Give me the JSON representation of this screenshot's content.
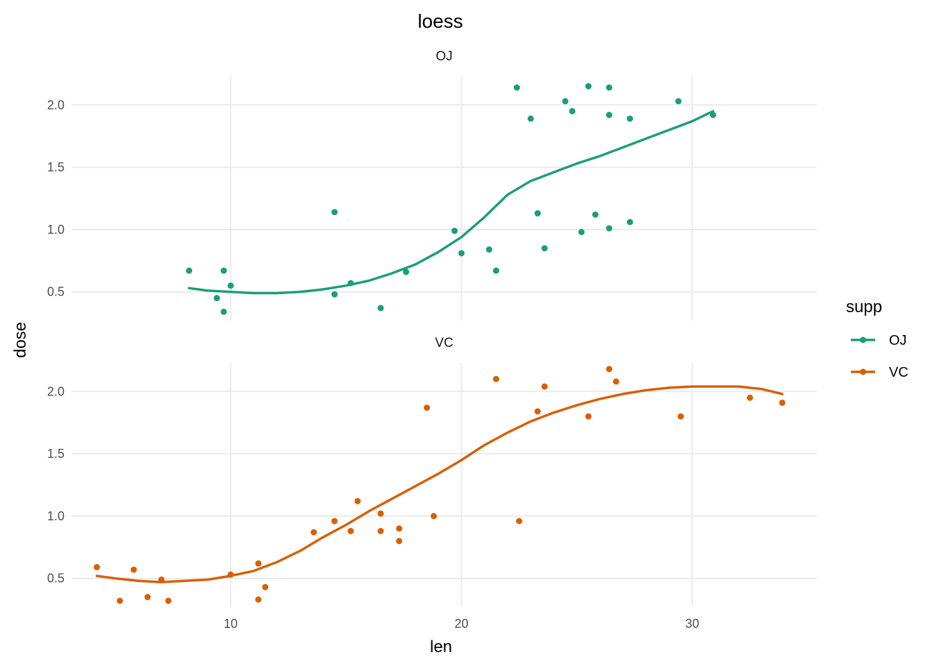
{
  "chart_data": {
    "type": "scatter",
    "title": "loess",
    "xlabel": "len",
    "ylabel": "dose",
    "xlim": [
      3.1,
      35.4
    ],
    "x_ticks": [
      10,
      20,
      30
    ],
    "y_ticks": [
      0.5,
      1.0,
      1.5,
      2.0
    ],
    "y_tick_labels": [
      "0.5",
      "1.0",
      "1.5",
      "2.0"
    ],
    "ylim": [
      0.27,
      2.23
    ],
    "grid": true,
    "legend": {
      "title": "supp",
      "placement": "right",
      "entries": [
        "OJ",
        "VC"
      ]
    },
    "facets": [
      {
        "label": "OJ",
        "color": "#1B9E77",
        "points": [
          {
            "x": 8.2,
            "y": 0.67
          },
          {
            "x": 9.4,
            "y": 0.45
          },
          {
            "x": 9.7,
            "y": 0.67
          },
          {
            "x": 9.7,
            "y": 0.34
          },
          {
            "x": 10.0,
            "y": 0.55
          },
          {
            "x": 14.5,
            "y": 1.14
          },
          {
            "x": 14.5,
            "y": 0.48
          },
          {
            "x": 15.2,
            "y": 0.57
          },
          {
            "x": 16.5,
            "y": 0.37
          },
          {
            "x": 17.6,
            "y": 0.66
          },
          {
            "x": 19.7,
            "y": 0.99
          },
          {
            "x": 20.0,
            "y": 0.81
          },
          {
            "x": 21.2,
            "y": 0.84
          },
          {
            "x": 21.5,
            "y": 0.67
          },
          {
            "x": 22.4,
            "y": 2.14
          },
          {
            "x": 23.0,
            "y": 1.89
          },
          {
            "x": 23.3,
            "y": 1.13
          },
          {
            "x": 23.6,
            "y": 0.85
          },
          {
            "x": 24.5,
            "y": 2.03
          },
          {
            "x": 24.8,
            "y": 1.95
          },
          {
            "x": 25.2,
            "y": 0.98
          },
          {
            "x": 25.5,
            "y": 2.15
          },
          {
            "x": 25.8,
            "y": 1.12
          },
          {
            "x": 26.4,
            "y": 2.14
          },
          {
            "x": 26.4,
            "y": 1.92
          },
          {
            "x": 26.4,
            "y": 1.01
          },
          {
            "x": 27.3,
            "y": 1.89
          },
          {
            "x": 27.3,
            "y": 1.06
          },
          {
            "x": 29.4,
            "y": 2.03
          },
          {
            "x": 30.9,
            "y": 1.92
          }
        ],
        "smooth": [
          {
            "x": 8.2,
            "y": 0.53
          },
          {
            "x": 9.0,
            "y": 0.51
          },
          {
            "x": 10.0,
            "y": 0.5
          },
          {
            "x": 11.0,
            "y": 0.49
          },
          {
            "x": 12.0,
            "y": 0.49
          },
          {
            "x": 13.0,
            "y": 0.5
          },
          {
            "x": 14.0,
            "y": 0.52
          },
          {
            "x": 15.0,
            "y": 0.55
          },
          {
            "x": 16.0,
            "y": 0.59
          },
          {
            "x": 17.0,
            "y": 0.65
          },
          {
            "x": 18.0,
            "y": 0.72
          },
          {
            "x": 19.0,
            "y": 0.82
          },
          {
            "x": 20.0,
            "y": 0.94
          },
          {
            "x": 21.0,
            "y": 1.1
          },
          {
            "x": 22.0,
            "y": 1.28
          },
          {
            "x": 23.0,
            "y": 1.39
          },
          {
            "x": 24.0,
            "y": 1.46
          },
          {
            "x": 25.0,
            "y": 1.53
          },
          {
            "x": 26.0,
            "y": 1.59
          },
          {
            "x": 27.0,
            "y": 1.66
          },
          {
            "x": 28.0,
            "y": 1.73
          },
          {
            "x": 29.0,
            "y": 1.8
          },
          {
            "x": 30.0,
            "y": 1.87
          },
          {
            "x": 30.9,
            "y": 1.95
          }
        ]
      },
      {
        "label": "VC",
        "color": "#D95F02",
        "points": [
          {
            "x": 4.2,
            "y": 0.59
          },
          {
            "x": 5.2,
            "y": 0.32
          },
          {
            "x": 5.8,
            "y": 0.57
          },
          {
            "x": 6.4,
            "y": 0.35
          },
          {
            "x": 7.0,
            "y": 0.49
          },
          {
            "x": 7.3,
            "y": 0.32
          },
          {
            "x": 10.0,
            "y": 0.53
          },
          {
            "x": 11.2,
            "y": 0.62
          },
          {
            "x": 11.2,
            "y": 0.33
          },
          {
            "x": 11.5,
            "y": 0.43
          },
          {
            "x": 13.6,
            "y": 0.87
          },
          {
            "x": 14.5,
            "y": 0.96
          },
          {
            "x": 15.2,
            "y": 0.88
          },
          {
            "x": 15.5,
            "y": 1.12
          },
          {
            "x": 16.5,
            "y": 1.02
          },
          {
            "x": 16.5,
            "y": 0.88
          },
          {
            "x": 17.3,
            "y": 0.9
          },
          {
            "x": 17.3,
            "y": 0.8
          },
          {
            "x": 18.5,
            "y": 1.87
          },
          {
            "x": 18.8,
            "y": 1.0
          },
          {
            "x": 21.5,
            "y": 2.1
          },
          {
            "x": 22.5,
            "y": 0.96
          },
          {
            "x": 23.3,
            "y": 1.84
          },
          {
            "x": 23.6,
            "y": 2.04
          },
          {
            "x": 25.5,
            "y": 1.8
          },
          {
            "x": 26.4,
            "y": 2.18
          },
          {
            "x": 26.7,
            "y": 2.08
          },
          {
            "x": 29.5,
            "y": 1.8
          },
          {
            "x": 32.5,
            "y": 1.95
          },
          {
            "x": 33.9,
            "y": 1.91
          }
        ],
        "smooth": [
          {
            "x": 4.2,
            "y": 0.52
          },
          {
            "x": 5.0,
            "y": 0.5
          },
          {
            "x": 6.0,
            "y": 0.48
          },
          {
            "x": 7.0,
            "y": 0.47
          },
          {
            "x": 8.0,
            "y": 0.48
          },
          {
            "x": 9.0,
            "y": 0.49
          },
          {
            "x": 10.0,
            "y": 0.52
          },
          {
            "x": 11.0,
            "y": 0.56
          },
          {
            "x": 12.0,
            "y": 0.63
          },
          {
            "x": 13.0,
            "y": 0.72
          },
          {
            "x": 14.0,
            "y": 0.83
          },
          {
            "x": 15.0,
            "y": 0.93
          },
          {
            "x": 16.0,
            "y": 1.04
          },
          {
            "x": 17.0,
            "y": 1.14
          },
          {
            "x": 18.0,
            "y": 1.24
          },
          {
            "x": 19.0,
            "y": 1.34
          },
          {
            "x": 20.0,
            "y": 1.45
          },
          {
            "x": 21.0,
            "y": 1.57
          },
          {
            "x": 22.0,
            "y": 1.67
          },
          {
            "x": 23.0,
            "y": 1.76
          },
          {
            "x": 24.0,
            "y": 1.83
          },
          {
            "x": 25.0,
            "y": 1.89
          },
          {
            "x": 26.0,
            "y": 1.94
          },
          {
            "x": 27.0,
            "y": 1.98
          },
          {
            "x": 28.0,
            "y": 2.01
          },
          {
            "x": 29.0,
            "y": 2.03
          },
          {
            "x": 30.0,
            "y": 2.04
          },
          {
            "x": 31.0,
            "y": 2.04
          },
          {
            "x": 32.0,
            "y": 2.04
          },
          {
            "x": 33.0,
            "y": 2.02
          },
          {
            "x": 33.9,
            "y": 1.98
          }
        ]
      }
    ]
  }
}
